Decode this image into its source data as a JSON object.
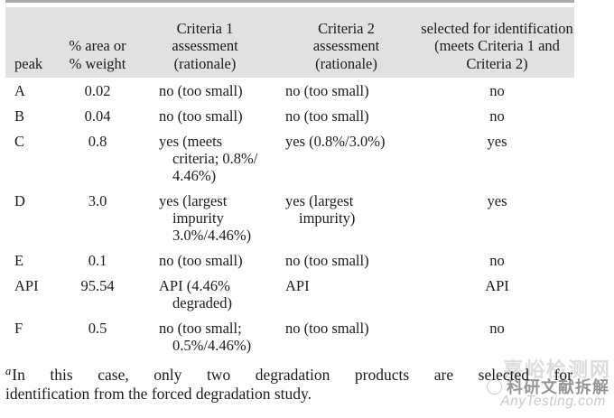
{
  "colors": {
    "header_bg": "#e1e1e1",
    "top_rule": "#a9a9a9",
    "text": "#1b1b1b",
    "watermark_logo": "#dcdcdc",
    "watermark_brand": "#969696",
    "watermark_site": "#c9c9c9"
  },
  "table": {
    "columns": [
      "peak",
      "% area or\n% weight",
      "Criteria 1\nassessment\n(rationale)",
      "Criteria 2\nassessment\n(rationale)",
      "selected for identification\n(meets Criteria 1 and\nCriteria 2)"
    ],
    "rows": [
      {
        "peak": "A",
        "area": "0.02",
        "c1": "no (too small)",
        "c2": "no (too small)",
        "sel": "no"
      },
      {
        "peak": "B",
        "area": "0.04",
        "c1": "no (too small)",
        "c2": "no (too small)",
        "sel": "no"
      },
      {
        "peak": "C",
        "area": "0.8",
        "c1": "yes (meets\ncriteria; 0.8%/\n4.46%)",
        "c2": "yes (0.8%/3.0%)",
        "sel": "yes"
      },
      {
        "peak": "D",
        "area": "3.0",
        "c1": "yes (largest\nimpurity\n3.0%/4.46%)",
        "c2": "yes (largest\nimpurity)",
        "sel": "yes"
      },
      {
        "peak": "E",
        "area": "0.1",
        "c1": "no (too small)",
        "c2": "no (too small)",
        "sel": "no"
      },
      {
        "peak": "API",
        "area": "95.54",
        "c1": "API (4.46%\ndegraded)",
        "c2": "API",
        "sel": "API"
      },
      {
        "peak": "F",
        "area": "0.5",
        "c1": "no (too small;\n0.5%/4.46%)",
        "c2": "no (too small)",
        "sel": "no"
      }
    ]
  },
  "footnote": {
    "marker": "a",
    "line1": "In this case, only two degradation products are selected for",
    "line2": "identification from the forced degradation study."
  },
  "watermark": {
    "logo_text": "嘉峪检测网",
    "brand_text": "科研文献拆解",
    "site_text": "AnyTesting.com"
  }
}
